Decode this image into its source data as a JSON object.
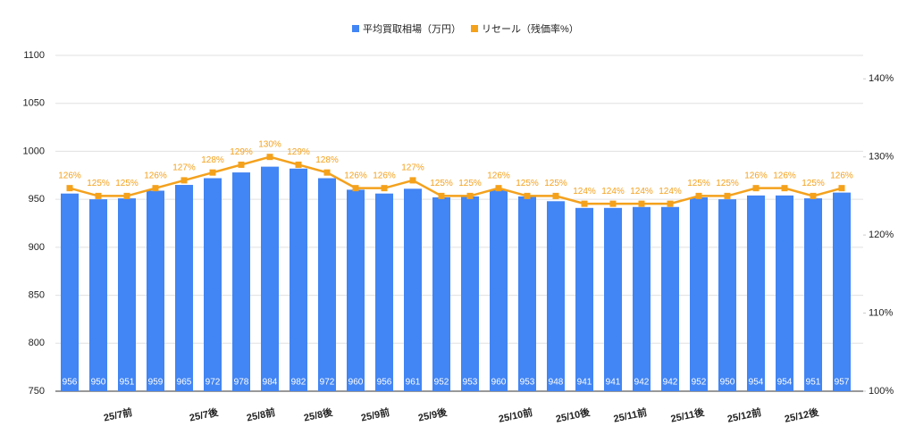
{
  "chart_data": {
    "type": "bar_line",
    "categories": [
      null,
      null,
      "25/7前",
      null,
      null,
      "25/7後",
      null,
      "25/8前",
      null,
      "25/8後",
      null,
      "25/9前",
      null,
      "25/9後",
      null,
      null,
      "25/10前",
      null,
      "25/10後",
      null,
      "25/11前",
      null,
      "25/11後",
      null,
      "25/12前",
      null,
      "25/12後",
      null
    ],
    "series": [
      {
        "name": "平均買取相場（万円）",
        "color": "#4285f4",
        "type": "bar",
        "values": [
          956,
          950,
          951,
          959,
          965,
          972,
          978,
          984,
          982,
          972,
          960,
          956,
          961,
          952,
          953,
          960,
          953,
          948,
          941,
          941,
          942,
          942,
          952,
          950,
          954,
          954,
          951,
          957
        ]
      },
      {
        "name": "リセール（残価率%）",
        "color": "#f4a11c",
        "type": "line",
        "axis": "y2",
        "values": [
          126,
          125,
          125,
          126,
          127,
          128,
          129,
          130,
          129,
          128,
          126,
          126,
          127,
          125,
          125,
          126,
          125,
          125,
          124,
          124,
          124,
          124,
          125,
          125,
          126,
          126,
          125,
          126
        ],
        "value_labels": [
          "126%",
          "125%",
          "125%",
          "126%",
          "127%",
          "128%",
          "129%",
          "130%",
          "129%",
          "128%",
          "126%",
          "126%",
          "127%",
          "125%",
          "125%",
          "126%",
          "125%",
          "125%",
          "124%",
          "124%",
          "124%",
          "124%",
          "125%",
          "125%",
          "126%",
          "126%",
          "125%",
          "126%"
        ]
      }
    ],
    "ylim": [
      750,
      1100
    ],
    "yticks": [
      750,
      800,
      850,
      900,
      950,
      1000,
      1050,
      1100
    ],
    "y2lim": [
      100,
      143
    ],
    "y2ticks": [
      {
        "value": 100,
        "label": "100%"
      },
      {
        "value": 110,
        "label": "110%"
      },
      {
        "value": 120,
        "label": "120%"
      },
      {
        "value": 130,
        "label": "130%"
      },
      {
        "value": 140,
        "label": "140%"
      }
    ],
    "grid": true,
    "legend": "top"
  }
}
